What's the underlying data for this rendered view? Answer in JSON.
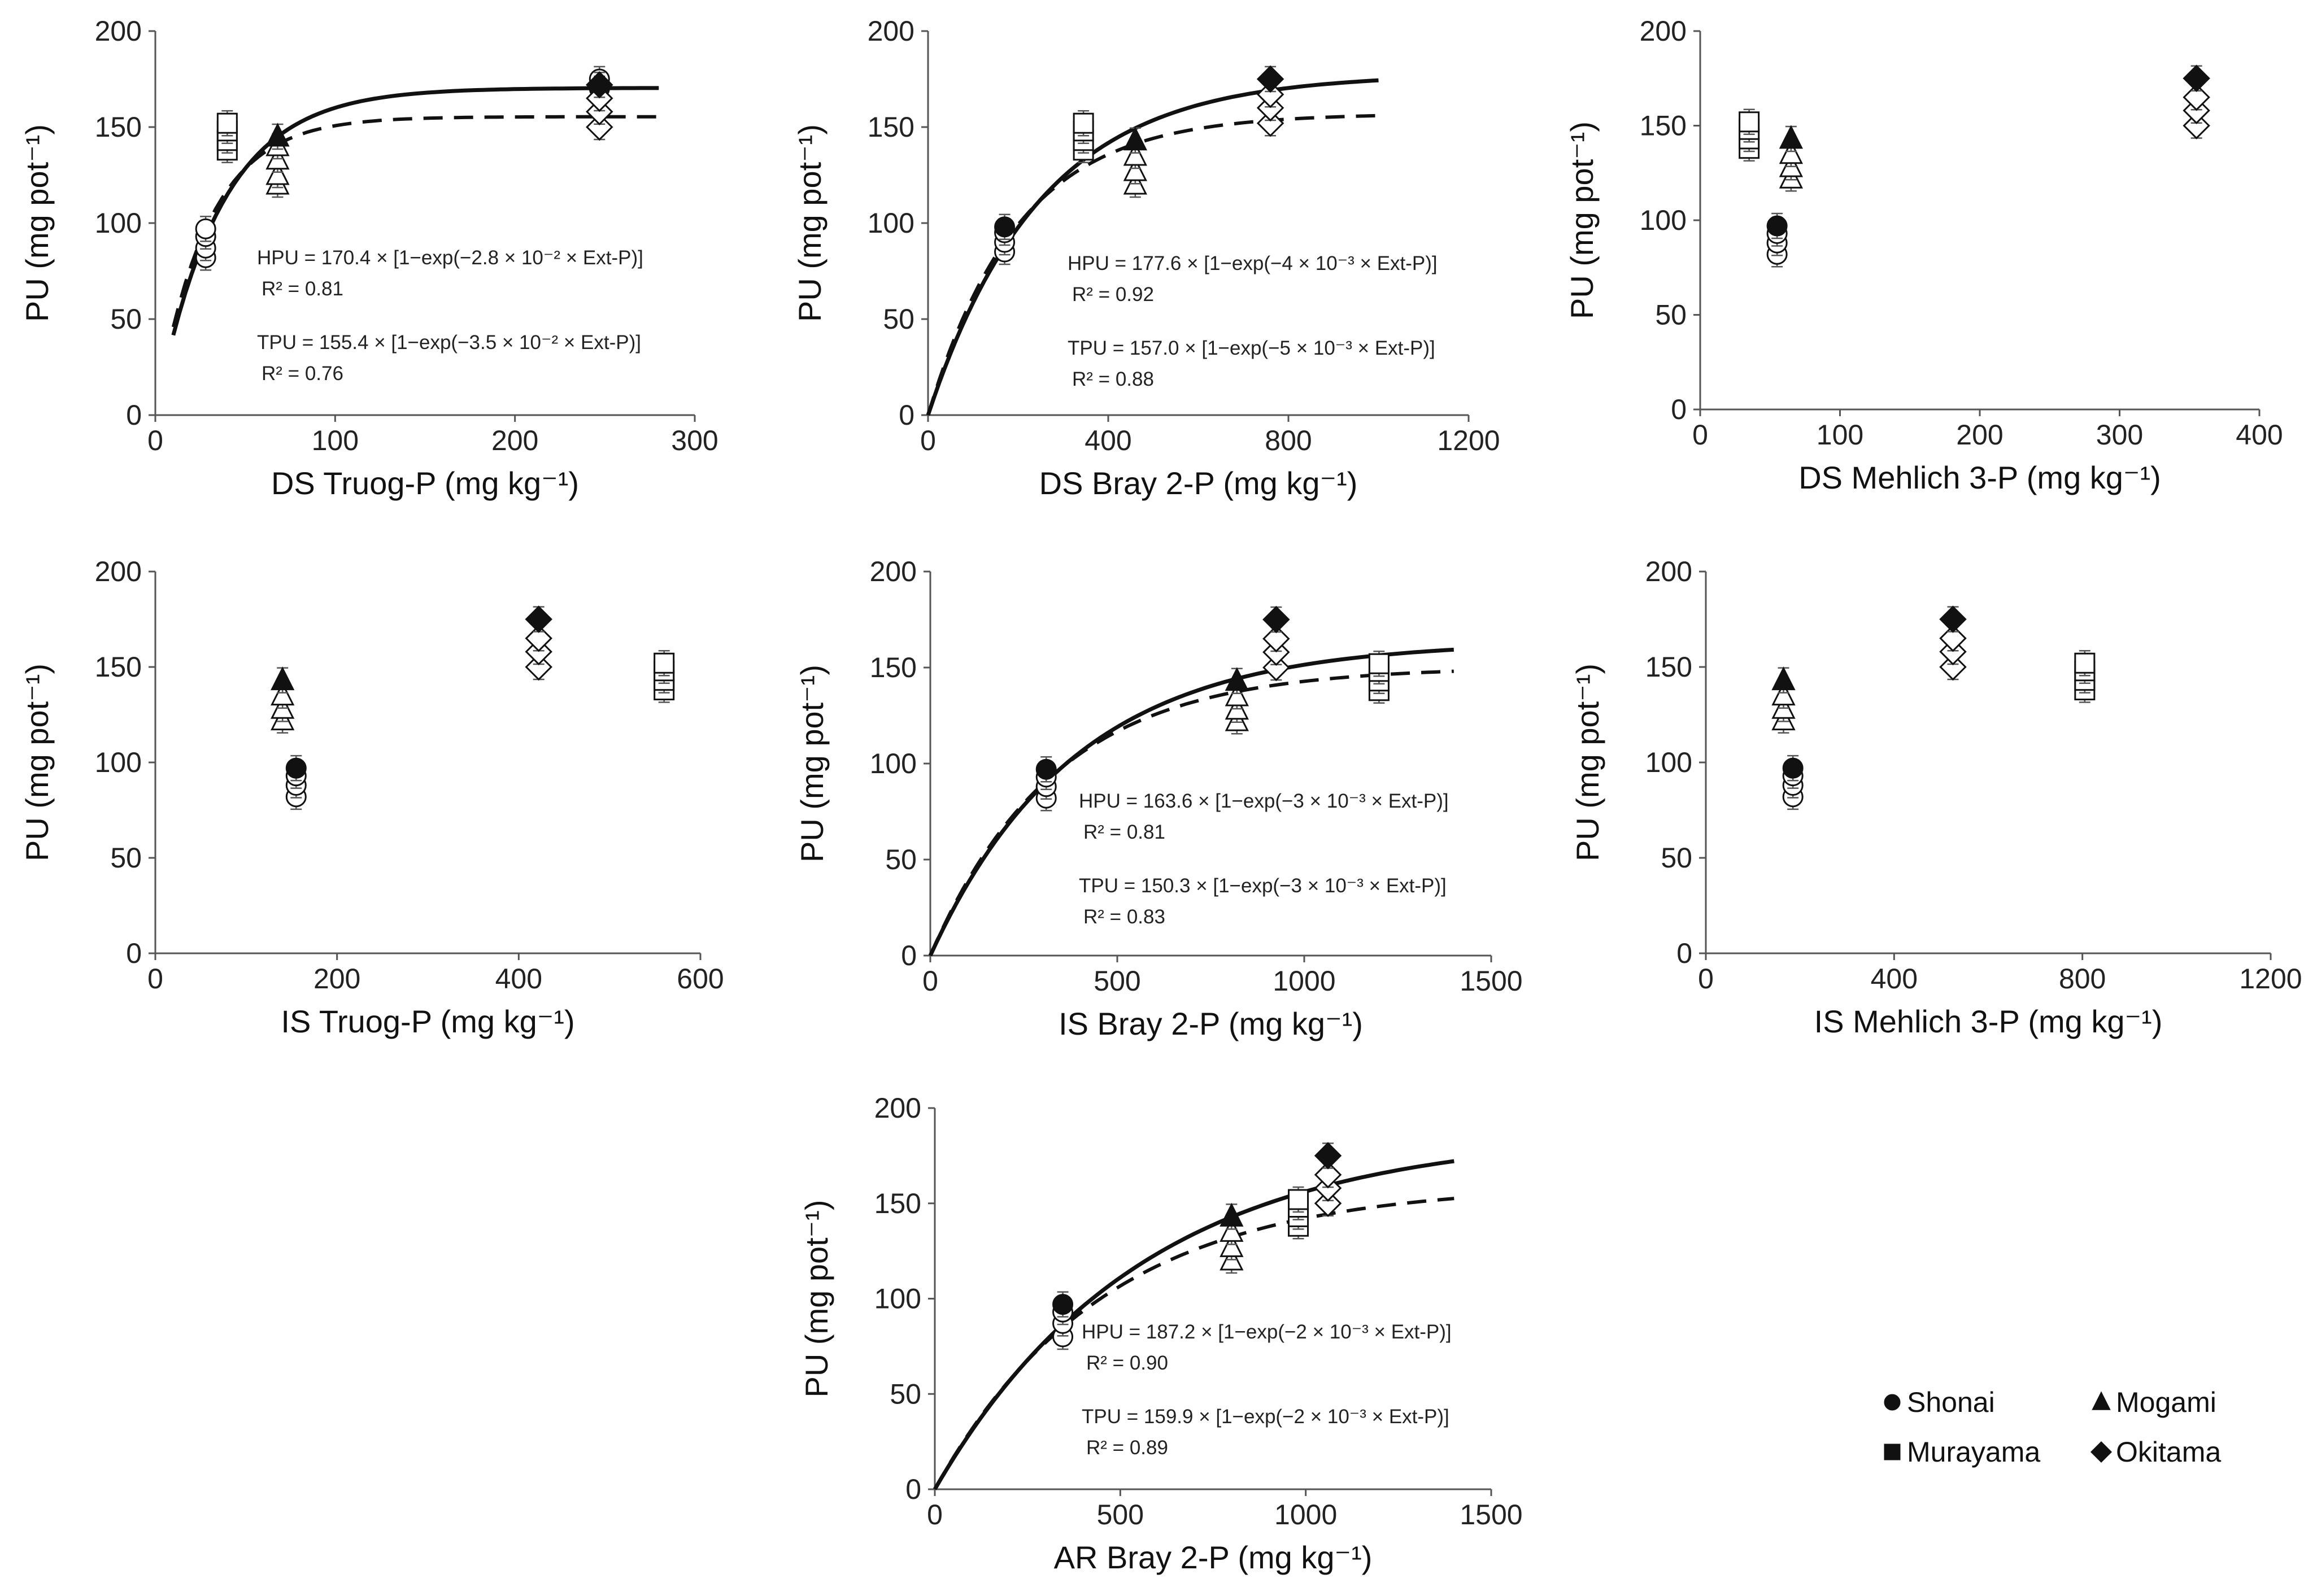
{
  "chart_data": [
    {
      "type": "scatter",
      "id": "ds-truog",
      "xlabel": "DS Truog-P (mg kg⁻¹)",
      "ylabel": "PU (mg pot⁻¹)",
      "xlim": [
        0,
        300
      ],
      "ylim": [
        0,
        200
      ],
      "xticks": [
        "0",
        "100",
        "200",
        "300"
      ],
      "yticks": [
        "0",
        "50",
        "100",
        "150",
        "200"
      ],
      "series": [
        {
          "name": "Shonai",
          "marker": "circle",
          "points": [
            [
              28,
              82
            ],
            [
              28,
              87
            ],
            [
              28,
              93
            ],
            [
              28,
              97
            ],
            [
              247,
              175
            ],
            [
              247,
              170
            ]
          ]
        },
        {
          "name": "Murayama",
          "marker": "square",
          "points": [
            [
              40,
              138
            ],
            [
              40,
              143
            ],
            [
              40,
              148
            ],
            [
              40,
              152
            ]
          ]
        },
        {
          "name": "Mogami",
          "marker": "triangle",
          "points": [
            [
              68,
              120
            ],
            [
              68,
              125
            ],
            [
              68,
              133
            ],
            [
              68,
              140
            ],
            [
              68,
              145
            ]
          ]
        },
        {
          "name": "Okitama",
          "marker": "diamond",
          "points": [
            [
              247,
              150
            ],
            [
              247,
              158
            ],
            [
              247,
              165
            ],
            [
              247,
              172
            ]
          ]
        }
      ],
      "fits": [
        {
          "name": "HPU",
          "style": "solid",
          "a": 170.4,
          "b": 0.028,
          "xrange": [
            10,
            280
          ]
        },
        {
          "name": "TPU",
          "style": "dashed",
          "a": 155.4,
          "b": 0.035,
          "xrange": [
            10,
            280
          ]
        }
      ],
      "equations": [
        "HPU = 170.4 × [1−exp(−2.8 × 10⁻² × Ext-P)]",
        "R² = 0.81",
        "TPU = 155.4 × [1−exp(−3.5 × 10⁻² × Ext-P)]",
        "R² = 0.76"
      ]
    },
    {
      "type": "scatter",
      "id": "ds-bray",
      "xlabel": "DS Bray 2-P (mg kg⁻¹)",
      "ylabel": "PU (mg pot⁻¹)",
      "xlim": [
        0,
        1200
      ],
      "ylim": [
        0,
        200
      ],
      "xticks": [
        "0",
        "400",
        "800",
        "1200"
      ],
      "yticks": [
        "0",
        "50",
        "100",
        "150",
        "200"
      ],
      "series": [
        {
          "name": "Shonai",
          "marker": "circle",
          "points": [
            [
              170,
              85
            ],
            [
              170,
              90
            ],
            [
              170,
              95
            ],
            [
              170,
              98
            ]
          ]
        },
        {
          "name": "Murayama",
          "marker": "square",
          "points": [
            [
              345,
              138
            ],
            [
              345,
              143
            ],
            [
              345,
              148
            ],
            [
              345,
              152
            ]
          ]
        },
        {
          "name": "Mogami",
          "marker": "triangle",
          "points": [
            [
              460,
              120
            ],
            [
              460,
              127
            ],
            [
              460,
              135
            ],
            [
              460,
              143
            ]
          ]
        },
        {
          "name": "Okitama",
          "marker": "diamond",
          "points": [
            [
              760,
              152
            ],
            [
              760,
              160
            ],
            [
              760,
              167
            ],
            [
              760,
              175
            ]
          ]
        }
      ],
      "fits": [
        {
          "name": "HPU",
          "style": "solid",
          "a": 177.6,
          "b": 0.004,
          "xrange": [
            0,
            1000
          ]
        },
        {
          "name": "TPU",
          "style": "dashed",
          "a": 157.0,
          "b": 0.005,
          "xrange": [
            0,
            1000
          ]
        }
      ],
      "equations": [
        "HPU = 177.6 × [1−exp(−4 × 10⁻³ × Ext-P)]",
        "R² = 0.92",
        "TPU = 157.0 × [1−exp(−5 × 10⁻³ × Ext-P)]",
        "R² = 0.88"
      ]
    },
    {
      "type": "scatter",
      "id": "ds-mehlich",
      "xlabel": "DS Mehlich 3-P (mg kg⁻¹)",
      "ylabel": "PU (mg pot⁻¹)",
      "xlim": [
        0,
        400
      ],
      "ylim": [
        0,
        200
      ],
      "xticks": [
        "0",
        "100",
        "200",
        "300",
        "400"
      ],
      "yticks": [
        "0",
        "50",
        "100",
        "150",
        "200"
      ],
      "series": [
        {
          "name": "Shonai",
          "marker": "circle",
          "points": [
            [
              55,
              82
            ],
            [
              55,
              88
            ],
            [
              55,
              93
            ],
            [
              55,
              97
            ]
          ]
        },
        {
          "name": "Murayama",
          "marker": "square",
          "points": [
            [
              35,
              138
            ],
            [
              35,
              143
            ],
            [
              35,
              148
            ],
            [
              35,
              152
            ]
          ]
        },
        {
          "name": "Mogami",
          "marker": "triangle",
          "points": [
            [
              65,
              122
            ],
            [
              65,
              128
            ],
            [
              65,
              135
            ],
            [
              65,
              143
            ]
          ]
        },
        {
          "name": "Okitama",
          "marker": "diamond",
          "points": [
            [
              355,
              150
            ],
            [
              355,
              158
            ],
            [
              355,
              165
            ],
            [
              355,
              175
            ]
          ]
        }
      ],
      "fits": [],
      "equations": []
    },
    {
      "type": "scatter",
      "id": "is-truog",
      "xlabel": "IS Truog-P (mg kg⁻¹)",
      "ylabel": "PU (mg pot⁻¹)",
      "xlim": [
        0,
        600
      ],
      "ylim": [
        0,
        200
      ],
      "xticks": [
        "0",
        "200",
        "400",
        "600"
      ],
      "yticks": [
        "0",
        "50",
        "100",
        "150",
        "200"
      ],
      "series": [
        {
          "name": "Shonai",
          "marker": "circle",
          "points": [
            [
              155,
              82
            ],
            [
              155,
              88
            ],
            [
              155,
              93
            ],
            [
              155,
              97
            ]
          ]
        },
        {
          "name": "Murayama",
          "marker": "square",
          "points": [
            [
              560,
              138
            ],
            [
              560,
              143
            ],
            [
              560,
              148
            ],
            [
              560,
              152
            ]
          ]
        },
        {
          "name": "Mogami",
          "marker": "triangle",
          "points": [
            [
              140,
              122
            ],
            [
              140,
              128
            ],
            [
              140,
              135
            ],
            [
              140,
              143
            ]
          ]
        },
        {
          "name": "Okitama",
          "marker": "diamond",
          "points": [
            [
              422,
              150
            ],
            [
              422,
              158
            ],
            [
              422,
              165
            ],
            [
              422,
              175
            ]
          ]
        }
      ],
      "fits": [],
      "equations": []
    },
    {
      "type": "scatter",
      "id": "is-bray",
      "xlabel": "IS Bray 2-P (mg kg⁻¹)",
      "ylabel": "PU (mg pot⁻¹)",
      "xlim": [
        0,
        1500
      ],
      "ylim": [
        0,
        200
      ],
      "xticks": [
        "0",
        "500",
        "1000",
        "1500"
      ],
      "yticks": [
        "0",
        "50",
        "100",
        "150",
        "200"
      ],
      "series": [
        {
          "name": "Shonai",
          "marker": "circle",
          "points": [
            [
              310,
              82
            ],
            [
              310,
              88
            ],
            [
              310,
              93
            ],
            [
              310,
              97
            ]
          ]
        },
        {
          "name": "Murayama",
          "marker": "square",
          "points": [
            [
              1200,
              138
            ],
            [
              1200,
              143
            ],
            [
              1200,
              148
            ],
            [
              1200,
              152
            ]
          ]
        },
        {
          "name": "Mogami",
          "marker": "triangle",
          "points": [
            [
              820,
              122
            ],
            [
              820,
              128
            ],
            [
              820,
              135
            ],
            [
              820,
              143
            ]
          ]
        },
        {
          "name": "Okitama",
          "marker": "diamond",
          "points": [
            [
              925,
              150
            ],
            [
              925,
              158
            ],
            [
              925,
              165
            ],
            [
              925,
              175
            ]
          ]
        }
      ],
      "fits": [
        {
          "name": "HPU",
          "style": "solid",
          "a": 163.6,
          "b": 0.0026,
          "xrange": [
            0,
            1400
          ]
        },
        {
          "name": "TPU",
          "style": "dashed",
          "a": 150.3,
          "b": 0.003,
          "xrange": [
            0,
            1400
          ]
        }
      ],
      "equations": [
        "HPU = 163.6 × [1−exp(−3 × 10⁻³ × Ext-P)]",
        "R² = 0.81",
        "TPU = 150.3 × [1−exp(−3 × 10⁻³ × Ext-P)]",
        "R² = 0.83"
      ]
    },
    {
      "type": "scatter",
      "id": "is-mehlich",
      "xlabel": "IS Mehlich 3-P (mg kg⁻¹)",
      "ylabel": "PU (mg pot⁻¹)",
      "xlim": [
        0,
        1200
      ],
      "ylim": [
        0,
        200
      ],
      "xticks": [
        "0",
        "400",
        "800",
        "1200"
      ],
      "yticks": [
        "0",
        "50",
        "100",
        "150",
        "200"
      ],
      "series": [
        {
          "name": "Shonai",
          "marker": "circle",
          "points": [
            [
              185,
              82
            ],
            [
              185,
              88
            ],
            [
              185,
              93
            ],
            [
              185,
              97
            ]
          ]
        },
        {
          "name": "Murayama",
          "marker": "square",
          "points": [
            [
              805,
              138
            ],
            [
              805,
              143
            ],
            [
              805,
              148
            ],
            [
              805,
              152
            ]
          ]
        },
        {
          "name": "Mogami",
          "marker": "triangle",
          "points": [
            [
              165,
              122
            ],
            [
              165,
              128
            ],
            [
              165,
              135
            ],
            [
              165,
              143
            ]
          ]
        },
        {
          "name": "Okitama",
          "marker": "diamond",
          "points": [
            [
              525,
              150
            ],
            [
              525,
              158
            ],
            [
              525,
              165
            ],
            [
              525,
              175
            ]
          ]
        }
      ],
      "fits": [],
      "equations": []
    },
    {
      "type": "scatter",
      "id": "ar-bray",
      "xlabel": "AR Bray 2-P (mg kg⁻¹)",
      "ylabel": "PU (mg pot⁻¹)",
      "xlim": [
        0,
        1500
      ],
      "ylim": [
        0,
        200
      ],
      "xticks": [
        "0",
        "500",
        "1000",
        "1500"
      ],
      "yticks": [
        "0",
        "50",
        "100",
        "150",
        "200"
      ],
      "series": [
        {
          "name": "Shonai",
          "marker": "circle",
          "points": [
            [
              345,
              80
            ],
            [
              345,
              87
            ],
            [
              345,
              93
            ],
            [
              345,
              97
            ]
          ]
        },
        {
          "name": "Murayama",
          "marker": "square",
          "points": [
            [
              980,
              138
            ],
            [
              980,
              143
            ],
            [
              980,
              148
            ],
            [
              980,
              152
            ]
          ]
        },
        {
          "name": "Mogami",
          "marker": "triangle",
          "points": [
            [
              800,
              120
            ],
            [
              800,
              127
            ],
            [
              800,
              135
            ],
            [
              800,
              143
            ]
          ]
        },
        {
          "name": "Okitama",
          "marker": "diamond",
          "points": [
            [
              1060,
              150
            ],
            [
              1060,
              158
            ],
            [
              1060,
              165
            ],
            [
              1060,
              175
            ]
          ]
        }
      ],
      "fits": [
        {
          "name": "HPU",
          "style": "solid",
          "a": 187.2,
          "b": 0.0018,
          "xrange": [
            0,
            1400
          ]
        },
        {
          "name": "TPU",
          "style": "dashed",
          "a": 159.9,
          "b": 0.0022,
          "xrange": [
            0,
            1400
          ]
        }
      ],
      "equations": [
        "HPU = 187.2 × [1−exp(−2 × 10⁻³ × Ext-P)]",
        "R² = 0.90",
        "TPU = 159.9 × [1−exp(−2 × 10⁻³ × Ext-P)]",
        "R² = 0.89"
      ]
    }
  ],
  "legend": [
    {
      "name": "Shonai",
      "marker": "circle"
    },
    {
      "name": "Mogami",
      "marker": "triangle"
    },
    {
      "name": "Murayama",
      "marker": "square"
    },
    {
      "name": "Okitama",
      "marker": "diamond"
    }
  ]
}
